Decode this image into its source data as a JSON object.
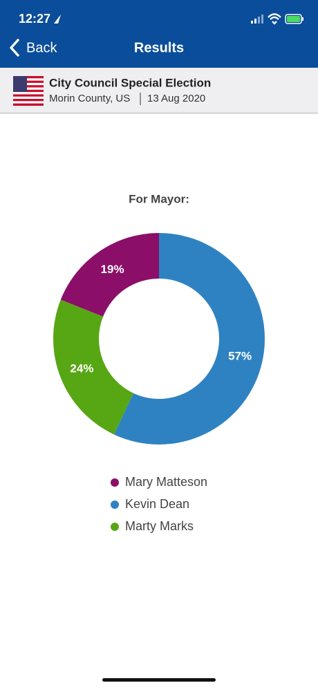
{
  "status_bar": {
    "time": "12:27"
  },
  "nav": {
    "back": "Back",
    "title": "Results"
  },
  "header": {
    "title": "City Council Special Election",
    "location": "Morin County, US",
    "date": "13 Aug 2020"
  },
  "chart_data": {
    "type": "donut",
    "title": "For Mayor:",
    "categories": [
      "Mary Matteson",
      "Kevin Dean",
      "Marty Marks"
    ],
    "values": [
      19,
      57,
      24
    ],
    "value_labels": [
      "19%",
      "57%",
      "24%"
    ],
    "colors": [
      "#8b0f68",
      "#2f82c1",
      "#57a614"
    ],
    "legend": "bottom"
  }
}
